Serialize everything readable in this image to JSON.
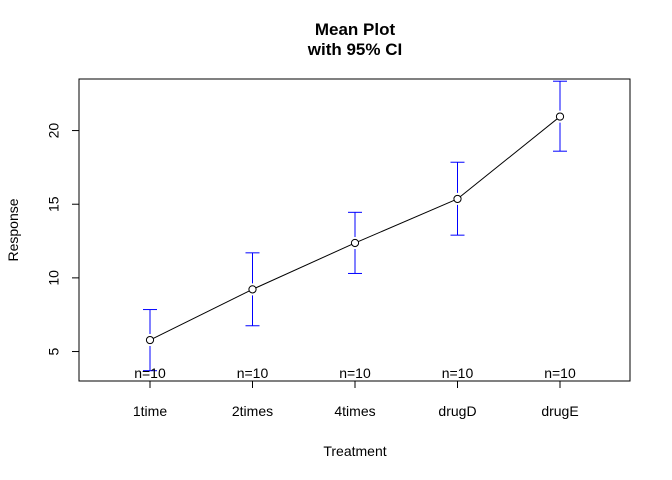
{
  "chart_data": {
    "type": "line",
    "title": "Mean Plot",
    "subtitle": "with 95% CI",
    "xlabel": "Treatment",
    "ylabel": "Response",
    "categories": [
      "1time",
      "2times",
      "4times",
      "drugD",
      "drugE"
    ],
    "means": [
      5.78,
      9.22,
      12.37,
      15.36,
      20.95
    ],
    "ci_lower": [
      3.7,
      6.75,
      10.3,
      12.9,
      18.6
    ],
    "ci_upper": [
      7.85,
      11.7,
      14.45,
      17.85,
      23.35
    ],
    "n_labels": [
      "n=10",
      "n=10",
      "n=10",
      "n=10",
      "n=10"
    ],
    "ylim": [
      3.0,
      23.5
    ],
    "yticks": [
      5,
      10,
      15,
      20
    ],
    "ytick_labels": [
      "5",
      "10",
      "15",
      "20"
    ],
    "line_color": "#000000",
    "ci_color": "#0000ff",
    "grid": false
  }
}
